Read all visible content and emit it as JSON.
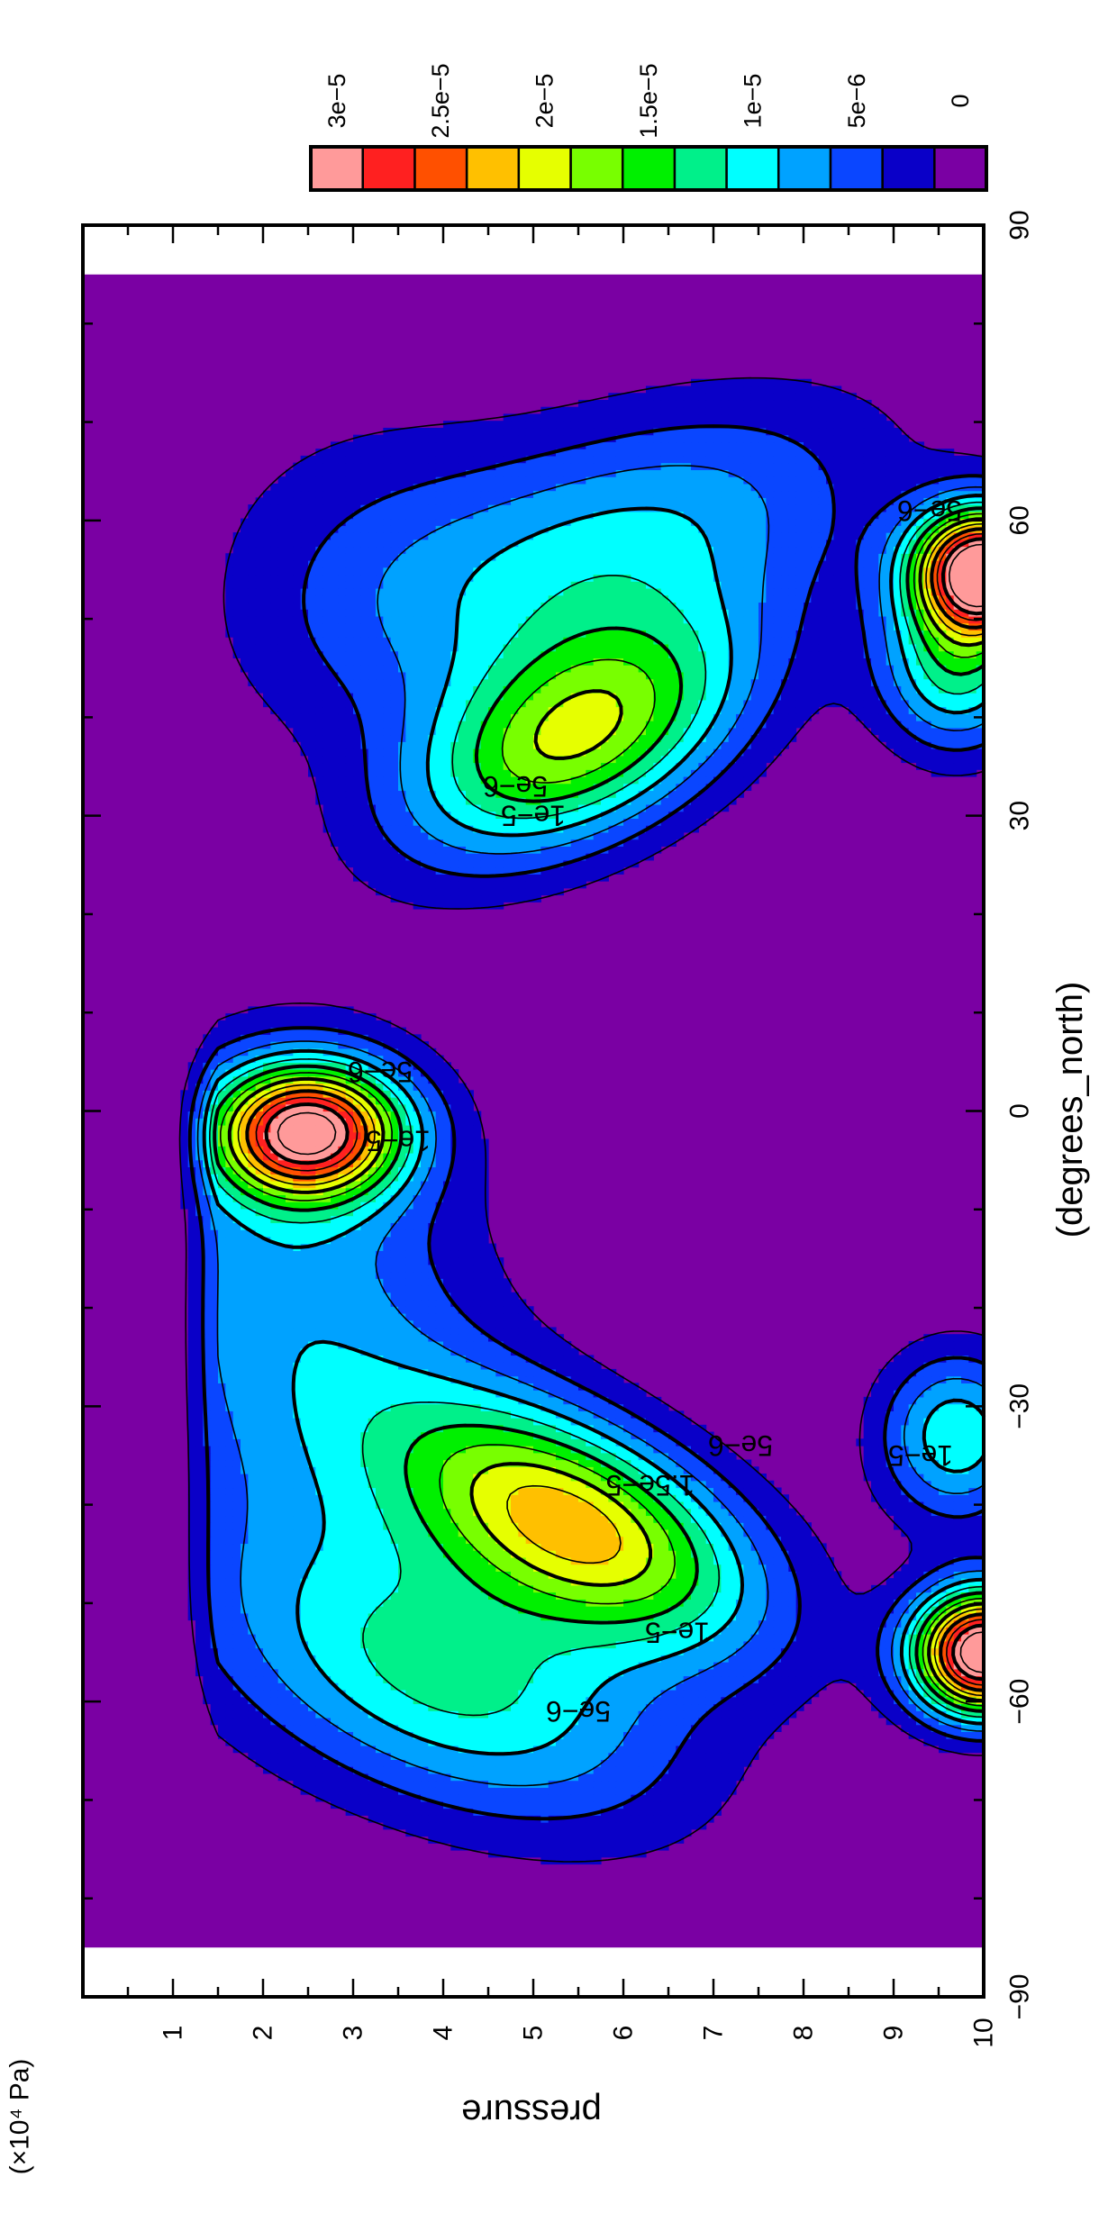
{
  "chart_data": {
    "type": "contour",
    "orientation": "rotated-90-clockwise",
    "xlabel": "(degrees_north)",
    "ylabel": "pressure",
    "yunit": "(×10⁴ Pa)",
    "xlim": [
      -90,
      90
    ],
    "ylim": [
      0,
      10
    ],
    "x_ticks": [
      "−90",
      "−60",
      "−30",
      "0",
      "30",
      "60",
      "90"
    ],
    "x_tick_values": [
      -90,
      -60,
      -30,
      0,
      30,
      60,
      90
    ],
    "y_ticks": [
      "1",
      "2",
      "3",
      "4",
      "5",
      "6",
      "7",
      "8",
      "9",
      "10"
    ],
    "y_tick_values": [
      1,
      2,
      3,
      4,
      5,
      6,
      7,
      8,
      9,
      10
    ],
    "data_lat_range": [
      -85,
      85
    ],
    "colorbar": {
      "levels": [
        0,
        2.5e-06,
        5e-06,
        7.5e-06,
        1e-05,
        1.25e-05,
        1.5e-05,
        1.75e-05,
        2e-05,
        2.25e-05,
        2.5e-05,
        2.75e-05,
        3e-05,
        3.25e-05
      ],
      "labels": [
        "0",
        "5e−6",
        "1e−5",
        "1.5e−5",
        "2e−5",
        "2.5e−5",
        "3e−5"
      ],
      "label_values": [
        0,
        5e-06,
        1e-05,
        1.5e-05,
        2e-05,
        2.5e-05,
        3e-05
      ],
      "colors": [
        "#7a00a3",
        "#0a00c8",
        "#0a46ff",
        "#00a2ff",
        "#00ffff",
        "#00f08a",
        "#00f000",
        "#78ff00",
        "#e6ff00",
        "#ffc000",
        "#ff5000",
        "#ff2020",
        "#ff9a9a"
      ]
    },
    "features": [
      {
        "name": "southern-jet-lobe",
        "center_lat": -42,
        "center_pressure": 5.5,
        "peak_level": 2.25e-05
      },
      {
        "name": "equatorial-maximum",
        "center_lat": -2,
        "center_pressure": 2.5,
        "peak_level": 3e-05
      },
      {
        "name": "northern-jet-lobe",
        "center_lat": 38,
        "center_pressure": 5.5,
        "peak_level": 2e-05
      },
      {
        "name": "southern-surface-maximum",
        "center_lat": -55,
        "center_pressure": 9.8,
        "peak_level": 3e-05
      },
      {
        "name": "northern-surface-maximum",
        "center_lat": 52,
        "center_pressure": 9.8,
        "peak_level": 3e-05
      }
    ],
    "contour_labels": [
      {
        "text": "5e−6",
        "lat": -61,
        "pressure": 5.5
      },
      {
        "text": "1e−5",
        "lat": -53,
        "pressure": 6.6
      },
      {
        "text": "5e−6",
        "lat": -34,
        "pressure": 7.3
      },
      {
        "text": "1.5e−5",
        "lat": -38,
        "pressure": 6.3
      },
      {
        "text": "1e−5",
        "lat": -35,
        "pressure": 9.3
      },
      {
        "text": "1e−5",
        "lat": -3,
        "pressure": 3.5
      },
      {
        "text": "5e−6",
        "lat": 4,
        "pressure": 3.3
      },
      {
        "text": "5e−6",
        "lat": 33,
        "pressure": 4.8
      },
      {
        "text": "1e−5",
        "lat": 30,
        "pressure": 5.0
      },
      {
        "text": "5e−6",
        "lat": 61,
        "pressure": 9.4
      }
    ]
  }
}
